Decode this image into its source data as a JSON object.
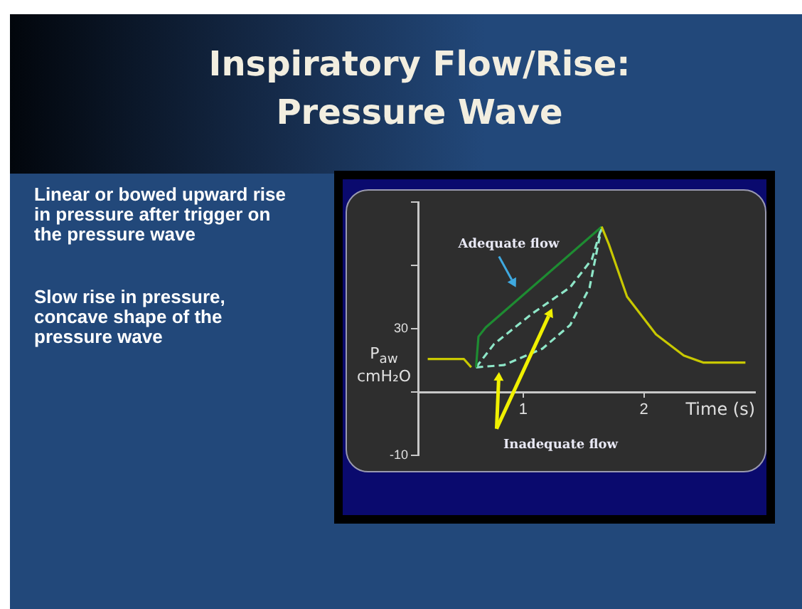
{
  "chart_data": {
    "type": "line",
    "title": "Inspiratory Flow/Rise: Pressure Wave",
    "xlabel": "Time (s)",
    "ylabel": "P$_{aw}$ cmH₂O",
    "xlim": [
      0.13,
      2.92
    ],
    "xticks": [
      1,
      2
    ],
    "ylim": [
      -10,
      70
    ],
    "yticks": [
      {
        "value": -10,
        "label": "-10"
      },
      {
        "value": 10,
        "label": null
      },
      30,
      {
        "value": 50,
        "label": null
      },
      {
        "value": 70,
        "label": null
      }
    ],
    "marker": "none",
    "grid": false,
    "legend": false,
    "series": [
      {
        "color": "#c8c800",
        "line_style": "solid",
        "x": [
          0.21,
          0.51,
          0.57,
          1.1,
          1.65,
          1.71,
          1.86,
          2.1,
          2.33,
          2.49,
          2.84
        ],
        "values": [
          20.4,
          20.4,
          17.8,
          null,
          62.2,
          56.6,
          40.1,
          28.2,
          21.5,
          19.3,
          19.3
        ]
      },
      {
        "color": "#1e8c32",
        "line_style": "solid",
        "x": [
          0.61,
          0.63,
          0.69,
          1.65
        ],
        "values": [
          17.8,
          27.5,
          30.4,
          62.2
        ]
      },
      {
        "color": "#8ee6c8",
        "line_style": "dashed",
        "x": [
          0.61,
          0.76,
          1.08,
          1.39,
          1.57,
          1.65
        ],
        "values": [
          17.8,
          25.2,
          34.9,
          43.1,
          52,
          62.2
        ]
      },
      {
        "color": "#8ee6c8",
        "line_style": "dashed",
        "x": [
          0.61,
          0.84,
          1.16,
          1.39,
          1.55,
          1.65
        ],
        "values": [
          17.8,
          18.5,
          23.7,
          31.2,
          43,
          62.2
        ]
      }
    ],
    "annotations": [
      "Adequate flow",
      "Inadequate flow",
      "Linear or bowed upward rise in pressure after trigger on the pressure wave",
      "Slow rise in pressure, concave shape of the pressure wave"
    ]
  }
}
